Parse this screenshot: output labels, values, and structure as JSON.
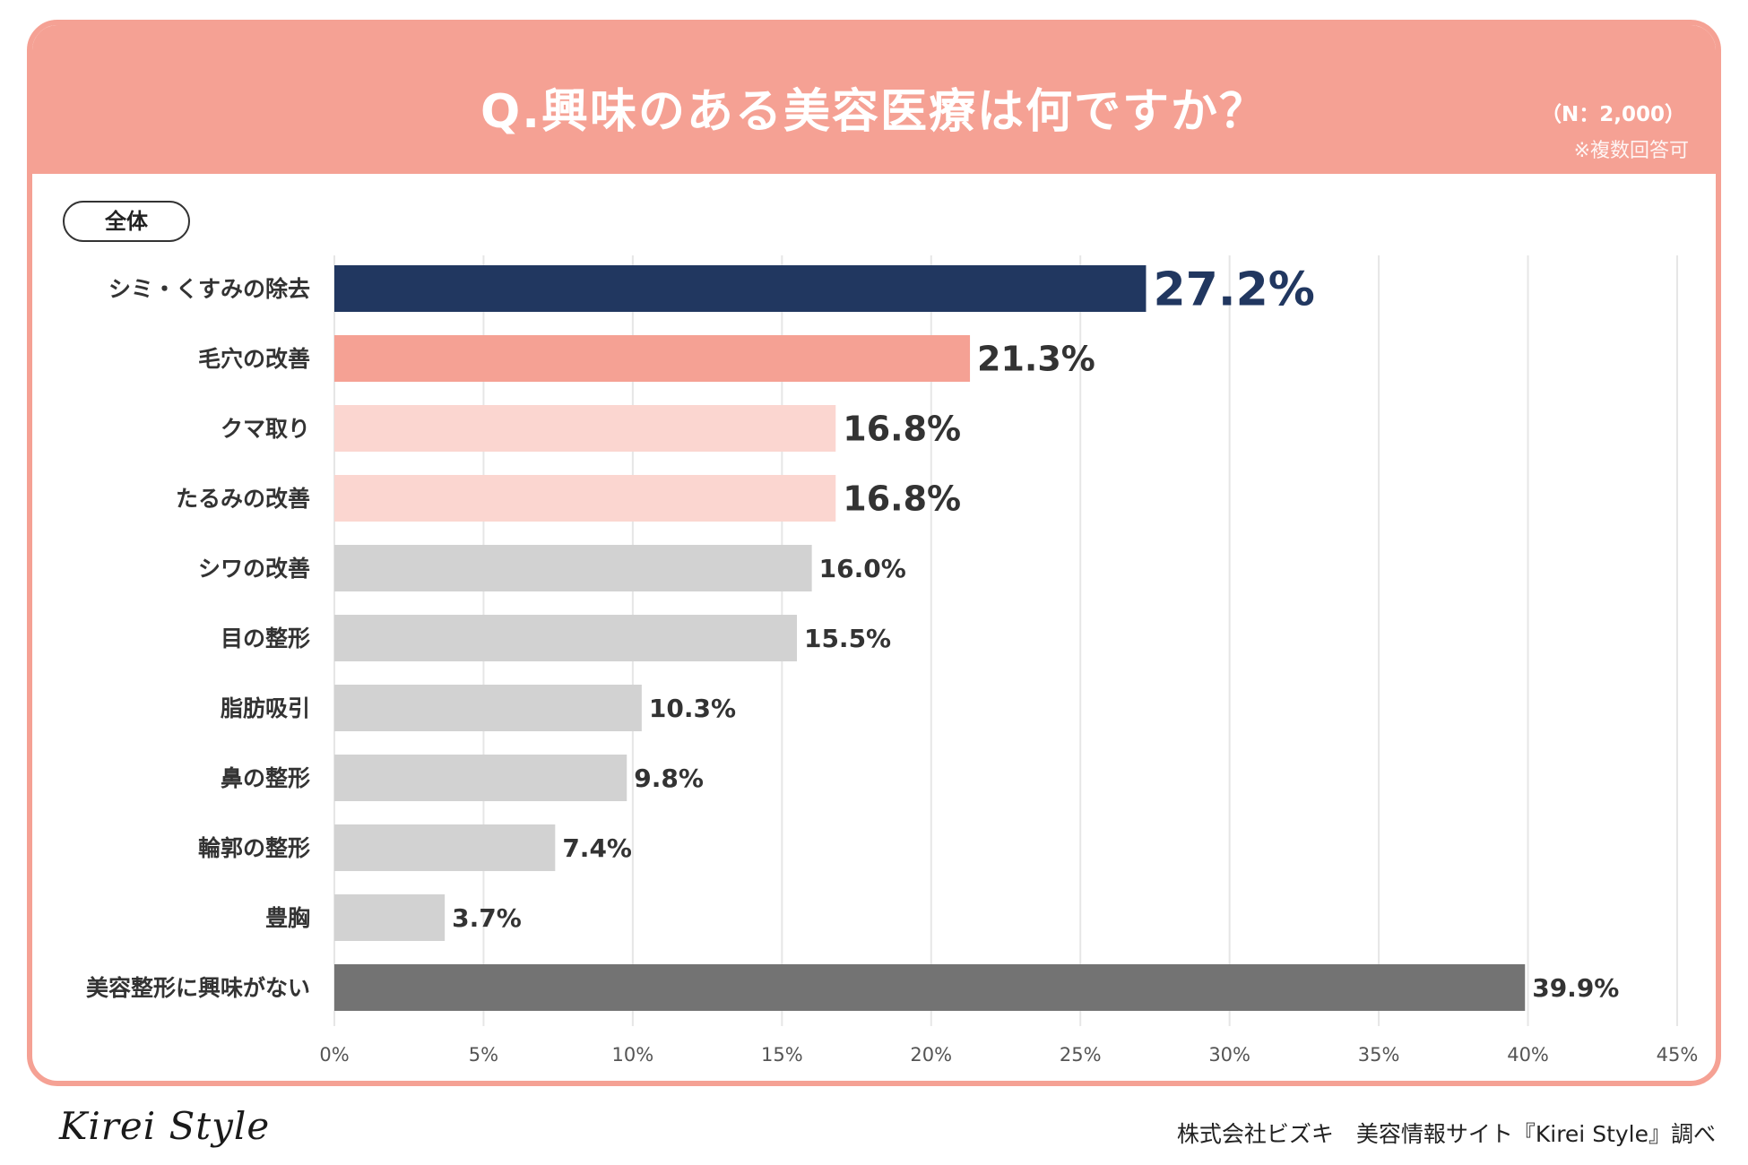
{
  "header": {
    "title": "Q.興味のある美容医療は何ですか？",
    "sample_size": "（N：2,000）",
    "multi_note": "※複数回答可"
  },
  "segment_label": "全体",
  "chart_data": {
    "type": "bar",
    "orientation": "horizontal",
    "categories": [
      "シミ・くすみの除去",
      "毛穴の改善",
      "クマ取り",
      "たるみの改善",
      "シワの改善",
      "目の整形",
      "脂肪吸引",
      "鼻の整形",
      "輪郭の整形",
      "豊胸",
      "美容整形に興味がない"
    ],
    "values": [
      27.2,
      21.3,
      16.8,
      16.8,
      16.0,
      15.5,
      10.3,
      9.8,
      7.4,
      3.7,
      39.9
    ],
    "value_labels": [
      "27.2%",
      "21.3%",
      "16.8%",
      "16.8%",
      "16.0%",
      "15.5%",
      "10.3%",
      "9.8%",
      "7.4%",
      "3.7%",
      "39.9%"
    ],
    "bar_colors": [
      "#213760",
      "#f5a194",
      "#fbd6d0",
      "#fbd6d0",
      "#d2d2d2",
      "#d2d2d2",
      "#d2d2d2",
      "#d2d2d2",
      "#d2d2d2",
      "#d2d2d2",
      "#737373"
    ],
    "label_colors": [
      "#213760",
      "#333333",
      "#333333",
      "#333333",
      "#333333",
      "#333333",
      "#333333",
      "#333333",
      "#333333",
      "#333333",
      "#333333"
    ],
    "label_emphasis": [
      "large",
      "medium",
      "medium",
      "medium",
      "normal",
      "normal",
      "normal",
      "normal",
      "normal",
      "normal",
      "normal"
    ],
    "xlim": [
      0,
      45
    ],
    "x_ticks": [
      0,
      5,
      10,
      15,
      20,
      25,
      30,
      35,
      40,
      45
    ],
    "x_tick_labels": [
      "0%",
      "5%",
      "10%",
      "15%",
      "20%",
      "25%",
      "30%",
      "35%",
      "40%",
      "45%"
    ],
    "grid": true,
    "title": "Q.興味のある美容医療は何ですか？",
    "xlabel": "",
    "ylabel": ""
  },
  "footer": {
    "logo": "Kirei Style",
    "source": "株式会社ビズキ　美容情報サイト『Kirei Style』調べ"
  }
}
